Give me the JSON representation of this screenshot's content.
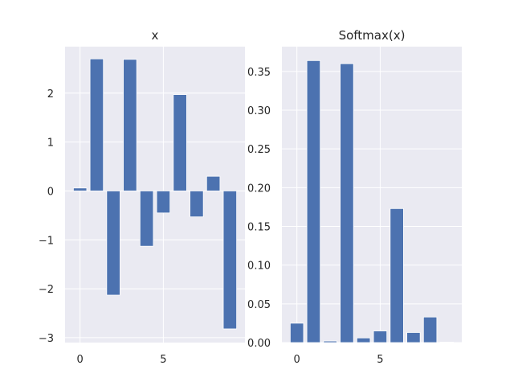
{
  "chart_data": [
    {
      "type": "bar",
      "title": "x",
      "xlabel": "",
      "ylabel": "",
      "grid": true,
      "x": [
        0,
        1,
        2,
        3,
        4,
        5,
        6,
        7,
        8,
        9
      ],
      "values": [
        0.06,
        2.7,
        -2.13,
        2.69,
        -1.13,
        -0.45,
        1.97,
        -0.53,
        0.3,
        -2.82
      ],
      "xlim": [
        -0.9,
        9.9
      ],
      "ylim": [
        -3.1,
        2.95
      ],
      "xticks": [
        0,
        5
      ],
      "xtick_labels": [
        "0",
        "5"
      ],
      "yticks": [
        -3,
        -2,
        -1,
        0,
        1,
        2
      ],
      "ytick_labels": [
        "−3",
        "−2",
        "−1",
        "0",
        "1",
        "2"
      ],
      "color": "#4c72b0"
    },
    {
      "type": "bar",
      "title": "Softmax(x)",
      "xlabel": "",
      "ylabel": "",
      "grid": true,
      "x": [
        0,
        1,
        2,
        3,
        4,
        5,
        6,
        7,
        8,
        9
      ],
      "values": [
        0.025,
        0.364,
        0.002,
        0.36,
        0.006,
        0.015,
        0.173,
        0.013,
        0.033,
        0.0006
      ],
      "xlim": [
        -0.9,
        9.9
      ],
      "ylim": [
        0.0,
        0.382
      ],
      "xticks": [
        0,
        5
      ],
      "xtick_labels": [
        "0",
        "5"
      ],
      "yticks": [
        0.0,
        0.05,
        0.1,
        0.15,
        0.2,
        0.25,
        0.3,
        0.35
      ],
      "ytick_labels": [
        "0.00",
        "0.05",
        "0.10",
        "0.15",
        "0.20",
        "0.25",
        "0.30",
        "0.35"
      ],
      "color": "#4c72b0"
    }
  ]
}
